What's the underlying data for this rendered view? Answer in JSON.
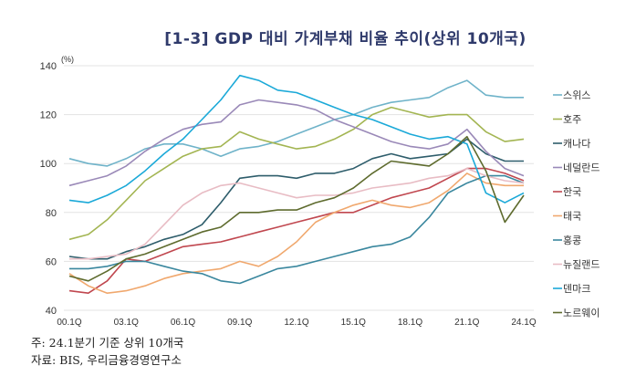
{
  "chart_data": {
    "type": "line",
    "title": "[1-3] GDP 대비 가계부채 비율 추이(상위 10개국)",
    "ylabel": "(%)",
    "xlabel": "",
    "ylim": [
      40,
      140
    ],
    "yticks": [
      40,
      60,
      80,
      100,
      120,
      140
    ],
    "grid": true,
    "legend_position": "right",
    "x": [
      "00.1Q",
      "01.1Q",
      "02.1Q",
      "03.1Q",
      "04.1Q",
      "05.1Q",
      "06.1Q",
      "07.1Q",
      "08.1Q",
      "09.1Q",
      "10.1Q",
      "11.1Q",
      "12.1Q",
      "13.1Q",
      "14.1Q",
      "15.1Q",
      "16.1Q",
      "17.1Q",
      "18.1Q",
      "19.1Q",
      "20.1Q",
      "21.1Q",
      "22.1Q",
      "23.1Q",
      "24.1Q"
    ],
    "xtick_labels": [
      "00.1Q",
      "03.1Q",
      "06.1Q",
      "09.1Q",
      "12.1Q",
      "15.1Q",
      "18.1Q",
      "21.1Q",
      "24.1Q"
    ],
    "series": [
      {
        "name": "스위스",
        "color": "#6fb3c9",
        "values": [
          102,
          100,
          99,
          102,
          106,
          108,
          108,
          106,
          103,
          106,
          107,
          109,
          112,
          115,
          118,
          120,
          123,
          125,
          126,
          127,
          131,
          134,
          128,
          127,
          127
        ]
      },
      {
        "name": "호주",
        "color": "#a3b552",
        "values": [
          69,
          71,
          77,
          85,
          93,
          98,
          103,
          106,
          107,
          113,
          110,
          108,
          106,
          107,
          110,
          114,
          120,
          123,
          121,
          119,
          120,
          120,
          113,
          109,
          110
        ]
      },
      {
        "name": "캐나다",
        "color": "#2e5d6b",
        "values": [
          62,
          61,
          61,
          64,
          66,
          69,
          71,
          75,
          84,
          94,
          95,
          95,
          94,
          96,
          96,
          98,
          102,
          104,
          102,
          103,
          104,
          110,
          104,
          101,
          101
        ]
      },
      {
        "name": "네덜란드",
        "color": "#9a89b8",
        "values": [
          91,
          93,
          95,
          99,
          105,
          110,
          114,
          116,
          117,
          124,
          126,
          125,
          124,
          122,
          118,
          115,
          112,
          109,
          107,
          106,
          108,
          114,
          105,
          98,
          95
        ]
      },
      {
        "name": "한국",
        "color": "#c0474f",
        "values": [
          48,
          47,
          52,
          61,
          60,
          63,
          66,
          67,
          68,
          70,
          72,
          74,
          76,
          78,
          80,
          80,
          83,
          86,
          88,
          90,
          94,
          98,
          98,
          96,
          93
        ]
      },
      {
        "name": "태국",
        "color": "#f0a86e",
        "values": [
          55,
          50,
          47,
          48,
          50,
          53,
          55,
          56,
          57,
          60,
          58,
          62,
          68,
          76,
          80,
          83,
          85,
          83,
          82,
          84,
          89,
          96,
          92,
          91,
          91
        ]
      },
      {
        "name": "홍콩",
        "color": "#3a879e",
        "values": [
          57,
          57,
          58,
          60,
          60,
          58,
          56,
          55,
          52,
          51,
          54,
          57,
          58,
          60,
          62,
          64,
          66,
          67,
          70,
          78,
          88,
          92,
          95,
          95,
          92
        ]
      },
      {
        "name": "뉴질랜드",
        "color": "#e8bcc4",
        "values": [
          61,
          61,
          62,
          63,
          67,
          75,
          83,
          88,
          91,
          92,
          90,
          88,
          86,
          87,
          87,
          88,
          90,
          91,
          92,
          94,
          95,
          98,
          95,
          93,
          92
        ]
      },
      {
        "name": "덴마크",
        "color": "#1ba9d8",
        "values": [
          85,
          84,
          87,
          91,
          97,
          104,
          110,
          118,
          126,
          136,
          134,
          130,
          129,
          126,
          123,
          120,
          118,
          115,
          112,
          110,
          111,
          108,
          88,
          84,
          88
        ]
      },
      {
        "name": "노르웨이",
        "color": "#5e6b2e",
        "values": [
          54,
          52,
          56,
          61,
          63,
          66,
          69,
          72,
          74,
          80,
          80,
          81,
          81,
          84,
          86,
          90,
          96,
          101,
          100,
          99,
          104,
          111,
          97,
          76,
          87
        ]
      }
    ]
  },
  "notes": {
    "note": "주: 24.1분기 기준 상위 10개국",
    "source": "자료: BIS, 우리금융경영연구소"
  }
}
